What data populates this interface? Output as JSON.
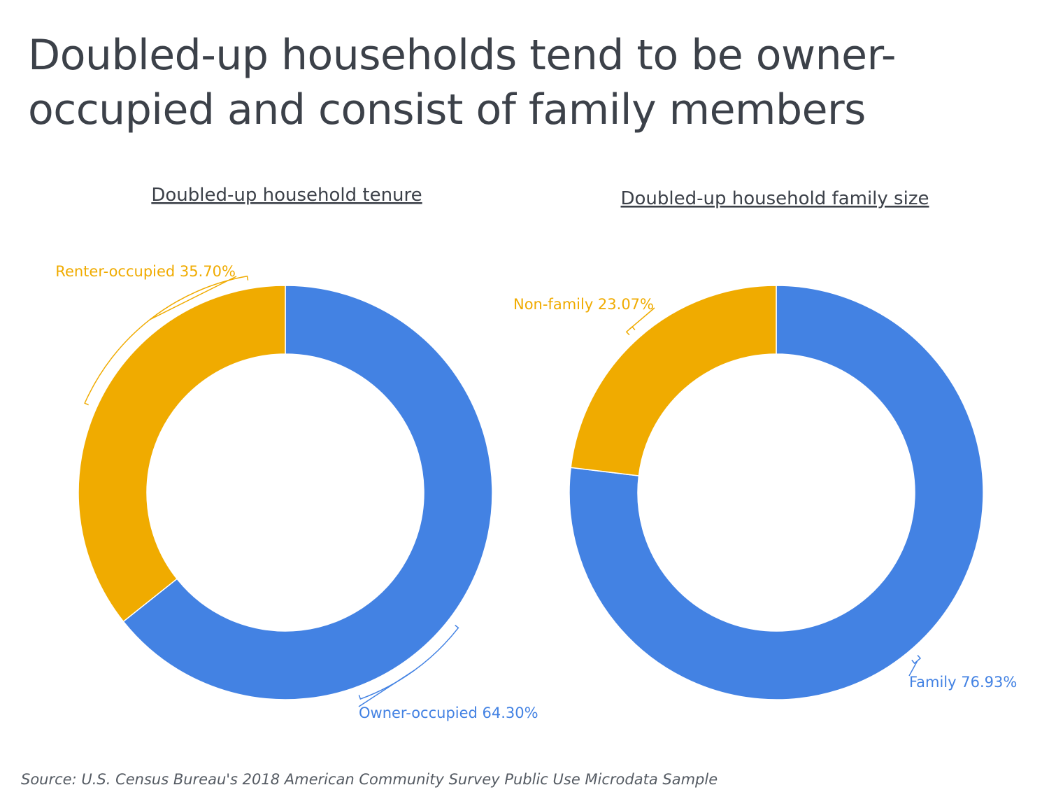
{
  "title": "Doubled-up households tend to be owner-occupied and consist of family members",
  "source": "Source: U.S. Census Bureau's 2018 American Community Survey Public Use Microdata Sample",
  "colors": {
    "blue": "#4382e3",
    "orange": "#f0ab00",
    "text": "#3c4149"
  },
  "chart_data": [
    {
      "type": "pie",
      "donut": true,
      "title": "Doubled-up household tenure",
      "slices": [
        {
          "label": "Owner-occupied 64.30%",
          "name": "Owner-occupied",
          "value": 64.3,
          "color": "#4382e3"
        },
        {
          "label": "Renter-occupied 35.70%",
          "name": "Renter-occupied",
          "value": 35.7,
          "color": "#f0ab00"
        }
      ]
    },
    {
      "type": "pie",
      "donut": true,
      "title": "Doubled-up household family size",
      "slices": [
        {
          "label": "Family 76.93%",
          "name": "Family",
          "value": 76.93,
          "color": "#4382e3"
        },
        {
          "label": "Non-family 23.07%",
          "name": "Non-family",
          "value": 23.07,
          "color": "#f0ab00"
        }
      ]
    }
  ]
}
